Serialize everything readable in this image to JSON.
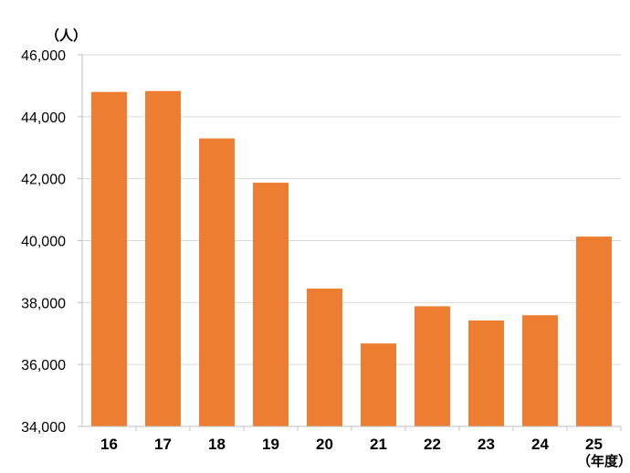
{
  "chart_data": {
    "type": "bar",
    "y_unit_label": "（人）",
    "x_unit_label": "（年度）",
    "categories": [
      "16",
      "17",
      "18",
      "19",
      "20",
      "21",
      "22",
      "23",
      "24",
      "25"
    ],
    "values": [
      44800,
      44830,
      43300,
      41870,
      38450,
      36680,
      37880,
      37420,
      37590,
      40130
    ],
    "ylim": [
      34000,
      46000
    ],
    "yticks": [
      34000,
      36000,
      38000,
      40000,
      42000,
      44000,
      46000
    ],
    "ytick_labels": [
      "34,000",
      "36,000",
      "38,000",
      "40,000",
      "42,000",
      "44,000",
      "46,000"
    ],
    "grid": true,
    "bar_color": "#ed7d31",
    "grid_color": "#d9d9d9"
  }
}
